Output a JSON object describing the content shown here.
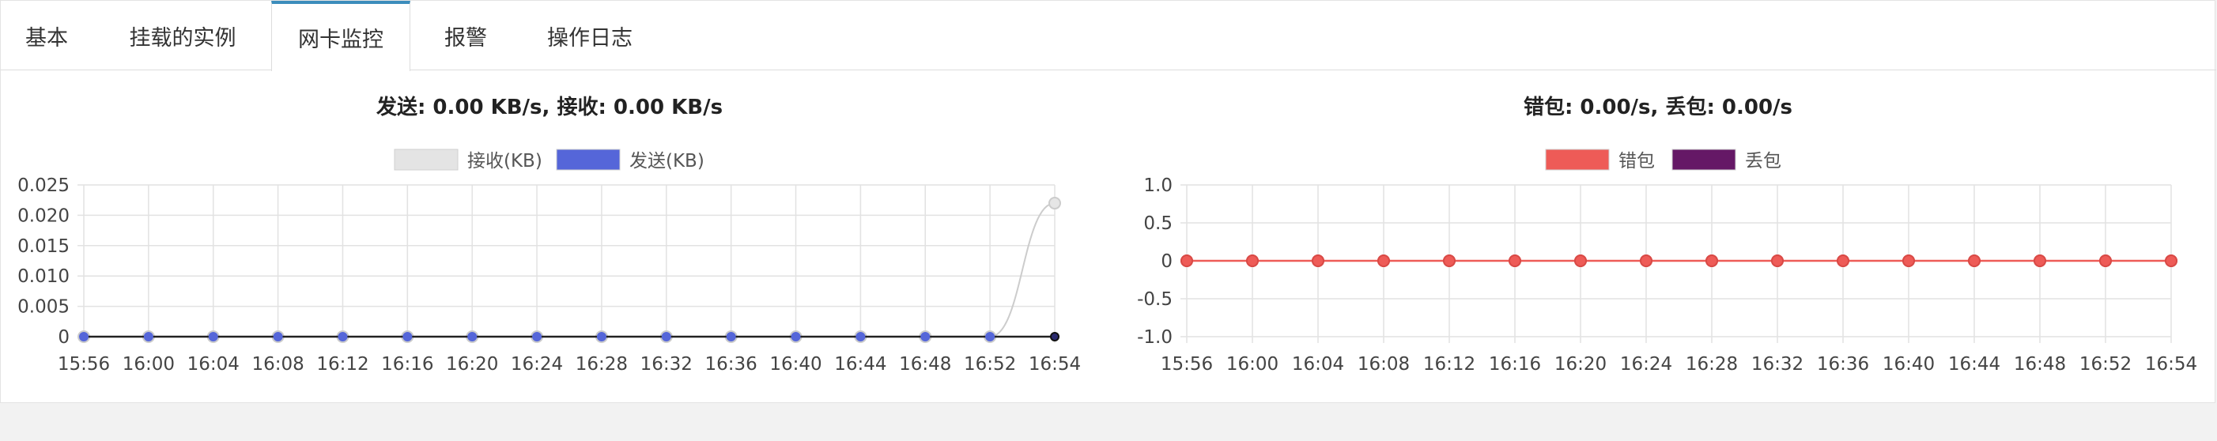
{
  "tabs": [
    {
      "label": "基本",
      "active": false
    },
    {
      "label": "挂载的实例",
      "active": false
    },
    {
      "label": "网卡监控",
      "active": true
    },
    {
      "label": "报警",
      "active": false
    },
    {
      "label": "操作日志",
      "active": false
    }
  ],
  "colors": {
    "accent": "#3c8dbc",
    "recv": "#e4e4e4",
    "send": "#5566d9",
    "error": "#ee5b57",
    "drop": "#651866"
  },
  "chart_data": [
    {
      "type": "line",
      "title": "发送: 0.00 KB/s, 接收: 0.00 KB/s",
      "categories": [
        "15:56",
        "16:00",
        "16:04",
        "16:08",
        "16:12",
        "16:16",
        "16:20",
        "16:24",
        "16:28",
        "16:32",
        "16:36",
        "16:40",
        "16:44",
        "16:48",
        "16:52",
        "16:54"
      ],
      "series": [
        {
          "name": "接收(KB)",
          "color": "#e4e4e4",
          "values": [
            0,
            0,
            0,
            0,
            0,
            0,
            0,
            0,
            0,
            0,
            0,
            0,
            0,
            0,
            0,
            0.022
          ]
        },
        {
          "name": "发送(KB)",
          "color": "#5566d9",
          "values": [
            0,
            0,
            0,
            0,
            0,
            0,
            0,
            0,
            0,
            0,
            0,
            0,
            0,
            0,
            0,
            0
          ]
        }
      ],
      "ylim": [
        0,
        0.025
      ],
      "yticks": [
        "0.025",
        "0.020",
        "0.015",
        "0.010",
        "0.005",
        "0"
      ],
      "grid": true,
      "legend": "top-center"
    },
    {
      "type": "line",
      "title": "错包: 0.00/s, 丢包: 0.00/s",
      "categories": [
        "15:56",
        "16:00",
        "16:04",
        "16:08",
        "16:12",
        "16:16",
        "16:20",
        "16:24",
        "16:28",
        "16:32",
        "16:36",
        "16:40",
        "16:44",
        "16:48",
        "16:52",
        "16:54"
      ],
      "series": [
        {
          "name": "错包",
          "color": "#ee5b57",
          "values": [
            0,
            0,
            0,
            0,
            0,
            0,
            0,
            0,
            0,
            0,
            0,
            0,
            0,
            0,
            0,
            0
          ]
        },
        {
          "name": "丢包",
          "color": "#651866",
          "values": [
            0,
            0,
            0,
            0,
            0,
            0,
            0,
            0,
            0,
            0,
            0,
            0,
            0,
            0,
            0,
            0
          ]
        }
      ],
      "ylim": [
        -1.0,
        1.0
      ],
      "yticks": [
        "1.0",
        "0.5",
        "0",
        "-0.5",
        "-1.0"
      ],
      "grid": true,
      "legend": "top-center"
    }
  ]
}
